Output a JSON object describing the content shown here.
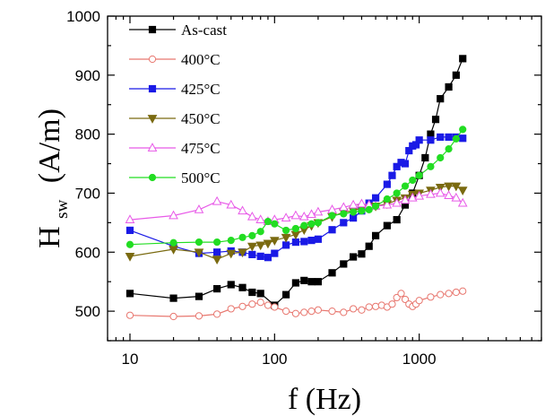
{
  "chart_data": {
    "type": "scatter",
    "xlabel": "f (Hz)",
    "ylabel_main": "H",
    "ylabel_sub": "sw",
    "ylabel_unit": "(A/m)",
    "xscale": "log",
    "xlim": [
      7,
      7000
    ],
    "ylim": [
      450,
      1000
    ],
    "xticks": [
      10,
      100,
      1000
    ],
    "xtick_labels": [
      "10",
      "100",
      "1000"
    ],
    "yticks": [
      500,
      600,
      700,
      800,
      900,
      1000
    ],
    "ytick_labels": [
      "500",
      "600",
      "700",
      "800",
      "900",
      "1000"
    ],
    "legend_position": "top-left",
    "series": [
      {
        "name": "As-cast",
        "color": "#000000",
        "marker": "square",
        "filled": true,
        "x": [
          10,
          20,
          30,
          40,
          50,
          60,
          70,
          80,
          100,
          120,
          140,
          160,
          180,
          200,
          250,
          300,
          350,
          400,
          450,
          500,
          600,
          700,
          800,
          900,
          1000,
          1100,
          1200,
          1300,
          1400,
          1600,
          1800,
          2000
        ],
        "y": [
          530,
          522,
          525,
          538,
          545,
          540,
          532,
          530,
          510,
          528,
          548,
          552,
          550,
          550,
          565,
          580,
          592,
          597,
          610,
          628,
          645,
          655,
          680,
          700,
          730,
          760,
          800,
          825,
          860,
          880,
          900,
          928
        ]
      },
      {
        "name": "400°C",
        "color": "#e8776f",
        "marker": "circle",
        "filled": false,
        "x": [
          10,
          20,
          30,
          40,
          50,
          60,
          70,
          80,
          90,
          100,
          120,
          140,
          160,
          180,
          200,
          250,
          300,
          350,
          400,
          450,
          500,
          550,
          600,
          650,
          700,
          750,
          800,
          850,
          900,
          950,
          1000,
          1200,
          1400,
          1600,
          1800,
          2000
        ],
        "y": [
          493,
          491,
          492,
          495,
          504,
          508,
          512,
          515,
          510,
          507,
          500,
          496,
          498,
          500,
          502,
          500,
          498,
          504,
          502,
          507,
          508,
          510,
          507,
          512,
          523,
          530,
          520,
          512,
          508,
          512,
          518,
          524,
          528,
          530,
          532,
          534
        ]
      },
      {
        "name": "425°C",
        "color": "#1a1ae6",
        "marker": "square",
        "filled": true,
        "x": [
          10,
          20,
          30,
          40,
          50,
          60,
          70,
          80,
          90,
          100,
          120,
          140,
          160,
          180,
          200,
          250,
          300,
          350,
          400,
          450,
          500,
          600,
          650,
          700,
          750,
          800,
          850,
          900,
          950,
          1000,
          1200,
          1400,
          1600,
          1800,
          2000
        ],
        "y": [
          637,
          610,
          598,
          600,
          602,
          600,
          596,
          593,
          591,
          598,
          612,
          617,
          618,
          620,
          622,
          638,
          650,
          658,
          670,
          683,
          692,
          715,
          730,
          745,
          752,
          750,
          772,
          780,
          782,
          790,
          790,
          795,
          795,
          795,
          793
        ]
      },
      {
        "name": "450°C",
        "color": "#7a6a10",
        "marker": "triangle-down",
        "filled": true,
        "x": [
          10,
          20,
          30,
          40,
          50,
          60,
          70,
          80,
          90,
          100,
          120,
          140,
          160,
          180,
          200,
          250,
          300,
          350,
          400,
          500,
          600,
          700,
          800,
          900,
          1000,
          1200,
          1400,
          1600,
          1800,
          2000
        ],
        "y": [
          593,
          605,
          600,
          588,
          598,
          600,
          610,
          612,
          615,
          620,
          625,
          630,
          638,
          645,
          650,
          660,
          668,
          670,
          675,
          678,
          682,
          688,
          692,
          698,
          700,
          705,
          710,
          712,
          712,
          705
        ]
      },
      {
        "name": "475°C",
        "color": "#e85ae8",
        "marker": "triangle-up",
        "filled": false,
        "x": [
          10,
          20,
          30,
          40,
          50,
          60,
          70,
          80,
          90,
          100,
          120,
          140,
          160,
          180,
          200,
          250,
          300,
          350,
          400,
          450,
          500,
          600,
          700,
          800,
          900,
          1000,
          1200,
          1400,
          1600,
          1800,
          2000
        ],
        "y": [
          655,
          662,
          672,
          686,
          680,
          670,
          660,
          655,
          652,
          655,
          658,
          662,
          660,
          664,
          668,
          672,
          676,
          680,
          682,
          680,
          678,
          680,
          683,
          688,
          692,
          695,
          698,
          700,
          696,
          692,
          683
        ]
      },
      {
        "name": "500°C",
        "color": "#22dd22",
        "marker": "circle",
        "filled": true,
        "x": [
          10,
          20,
          30,
          40,
          50,
          60,
          70,
          80,
          90,
          100,
          120,
          140,
          160,
          180,
          200,
          250,
          300,
          350,
          400,
          450,
          500,
          600,
          700,
          800,
          900,
          1000,
          1200,
          1400,
          1600,
          1800,
          2000
        ],
        "y": [
          613,
          616,
          617,
          617,
          620,
          625,
          628,
          635,
          652,
          648,
          637,
          640,
          645,
          648,
          650,
          662,
          665,
          668,
          670,
          672,
          678,
          690,
          700,
          712,
          722,
          730,
          745,
          760,
          775,
          792,
          808
        ]
      }
    ]
  }
}
